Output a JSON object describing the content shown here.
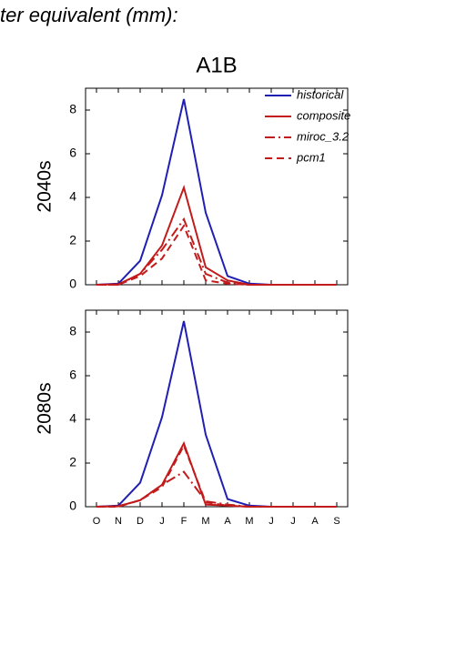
{
  "header": {
    "text": "ter equivalent (mm):",
    "title": "A1B"
  },
  "chart_data": [
    {
      "type": "line",
      "ylabel": "2040s",
      "categories": [
        null,
        null,
        null,
        null,
        null,
        null,
        null,
        null,
        null,
        null,
        null,
        null
      ],
      "ylim": [
        0,
        9
      ],
      "yticks": [
        0,
        2,
        4,
        6,
        8
      ],
      "legend": "upper right",
      "series": [
        {
          "name": "historical",
          "color": "#1f1fb4",
          "linestyle": "solid",
          "values": [
            0,
            0.05,
            1.1,
            4.1,
            8.5,
            3.3,
            0.4,
            0.05,
            0,
            0,
            0,
            0
          ]
        },
        {
          "name": "composite",
          "color": "#c21b1b",
          "linestyle": "solid",
          "values": [
            0,
            0.02,
            0.5,
            1.8,
            4.45,
            0.8,
            0.2,
            0,
            0,
            0,
            0,
            0
          ]
        },
        {
          "name": "miroc_3.2",
          "color": "#c21b1b",
          "linestyle": "dashdot",
          "values": [
            0,
            0,
            0.5,
            1.6,
            3.0,
            0.5,
            0.1,
            0,
            0,
            0,
            0,
            0
          ]
        },
        {
          "name": "pcm1",
          "color": "#c21b1b",
          "linestyle": "dashed",
          "values": [
            0,
            0,
            0.4,
            1.2,
            2.7,
            0.2,
            0.05,
            0,
            0,
            0,
            0,
            0
          ]
        }
      ]
    },
    {
      "type": "line",
      "ylabel": "2080s",
      "categories": [
        "O",
        "N",
        "D",
        "J",
        "F",
        "M",
        "A",
        "M",
        "J",
        "J",
        "A",
        "S"
      ],
      "ylim": [
        0,
        9
      ],
      "yticks": [
        0,
        2,
        4,
        6,
        8
      ],
      "series": [
        {
          "color": "#1f1fb4",
          "linestyle": "solid",
          "values": [
            0,
            0.05,
            1.1,
            4.1,
            8.5,
            3.3,
            0.35,
            0.05,
            0,
            0,
            0,
            0
          ]
        },
        {
          "color": "#c21b1b",
          "linestyle": "solid",
          "values": [
            0,
            0.02,
            0.3,
            1.0,
            2.9,
            0.1,
            0.05,
            0,
            0,
            0,
            0,
            0
          ]
        },
        {
          "color": "#c21b1b",
          "linestyle": "dashdot",
          "values": [
            0,
            0.02,
            0.3,
            1.0,
            1.6,
            0.25,
            0.1,
            0,
            0,
            0,
            0,
            0
          ]
        },
        {
          "color": "#c21b1b",
          "linestyle": "dashed",
          "values": [
            0,
            0,
            0.3,
            0.9,
            2.8,
            0.2,
            0.05,
            0,
            0,
            0,
            0,
            0
          ]
        }
      ]
    }
  ]
}
